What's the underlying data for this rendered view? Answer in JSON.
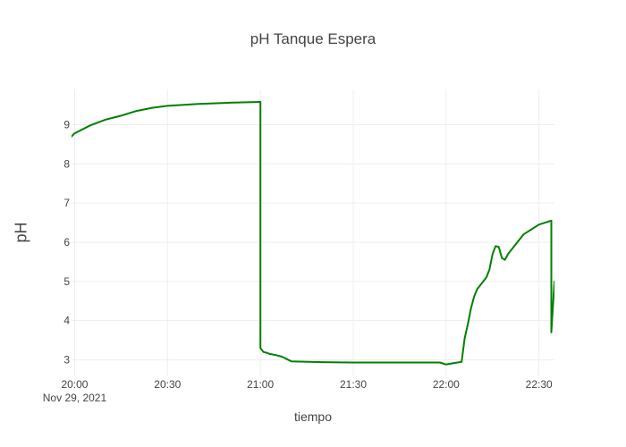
{
  "chart_data": {
    "type": "line",
    "title": "pH Tanque Espera",
    "xlabel": "tiempo",
    "ylabel": "pH",
    "x_date_label": "Nov 29, 2021",
    "x_ticks": [
      "20:00",
      "20:30",
      "21:00",
      "21:30",
      "22:00",
      "22:30"
    ],
    "y_ticks": [
      3,
      4,
      5,
      6,
      7,
      8,
      9
    ],
    "xlim": [
      "19:59",
      "22:35"
    ],
    "ylim": [
      2.6,
      9.9
    ],
    "grid": true,
    "legend": false,
    "line_color": "#008000",
    "series": [
      {
        "x": [
          "19:55",
          "19:57",
          "19:59",
          "20:00",
          "20:05",
          "20:10",
          "20:15",
          "20:20",
          "20:25",
          "20:30",
          "20:40",
          "20:50",
          "21:00",
          "21:00",
          "21:00",
          "21:00",
          "21:01",
          "21:02",
          "21:03",
          "21:05",
          "21:07",
          "21:10",
          "21:20",
          "21:30",
          "21:40",
          "21:50",
          "21:55",
          "21:58",
          "22:00",
          "22:05",
          "22:06",
          "22:07",
          "22:08",
          "22:09",
          "22:10",
          "22:11",
          "22:12",
          "22:13",
          "22:14",
          "22:15",
          "22:16",
          "22:17",
          "22:18",
          "22:19",
          "22:20",
          "22:25",
          "22:30",
          "22:34",
          "22:34",
          "22:35",
          "22:35",
          "22:36",
          "22:36"
        ],
        "y": [
          8.4,
          8.55,
          8.7,
          8.78,
          8.98,
          9.13,
          9.23,
          9.35,
          9.43,
          9.48,
          9.53,
          9.56,
          9.58,
          9.55,
          6.0,
          3.3,
          3.2,
          3.18,
          3.15,
          3.12,
          3.08,
          2.96,
          2.94,
          2.93,
          2.93,
          2.93,
          2.93,
          2.93,
          2.88,
          2.95,
          3.55,
          3.9,
          4.3,
          4.6,
          4.8,
          4.9,
          5.0,
          5.1,
          5.3,
          5.7,
          5.9,
          5.88,
          5.6,
          5.55,
          5.7,
          6.2,
          6.45,
          6.55,
          3.7,
          5.0,
          4.9,
          5.25,
          5.1
        ]
      }
    ]
  }
}
